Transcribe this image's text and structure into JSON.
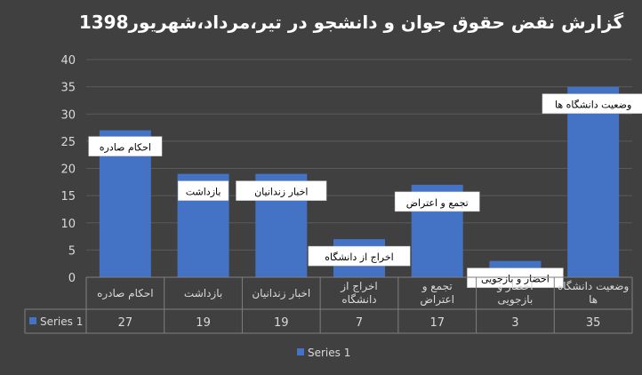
{
  "chart_data": {
    "type": "bar",
    "title": "گزارش نقض حقوق جوان و دانشجو در تیر،مرداد،شهریور1398",
    "categories": [
      "احکام صادره",
      "بازداشت",
      "اخبار زندانیان",
      "اخراج از دانشگاه",
      "تجمع و اعتراض",
      "احضار و بازجویی",
      "وضعیت دانشگاه ها"
    ],
    "series": [
      {
        "name": "Series 1",
        "values": [
          27,
          19,
          19,
          7,
          17,
          3,
          35
        ]
      }
    ],
    "ylim": [
      0,
      40
    ],
    "yticks": [
      0,
      5,
      10,
      15,
      20,
      25,
      30,
      35,
      40
    ],
    "grid": true,
    "legend": "bottom",
    "data_table": true,
    "colors": {
      "background": "#404040",
      "bar": "#4472C4",
      "text": "#d9d9d9",
      "grid": "#5a5a5a",
      "callout_bg": "#ffffff",
      "callout_text": "#000000"
    }
  }
}
